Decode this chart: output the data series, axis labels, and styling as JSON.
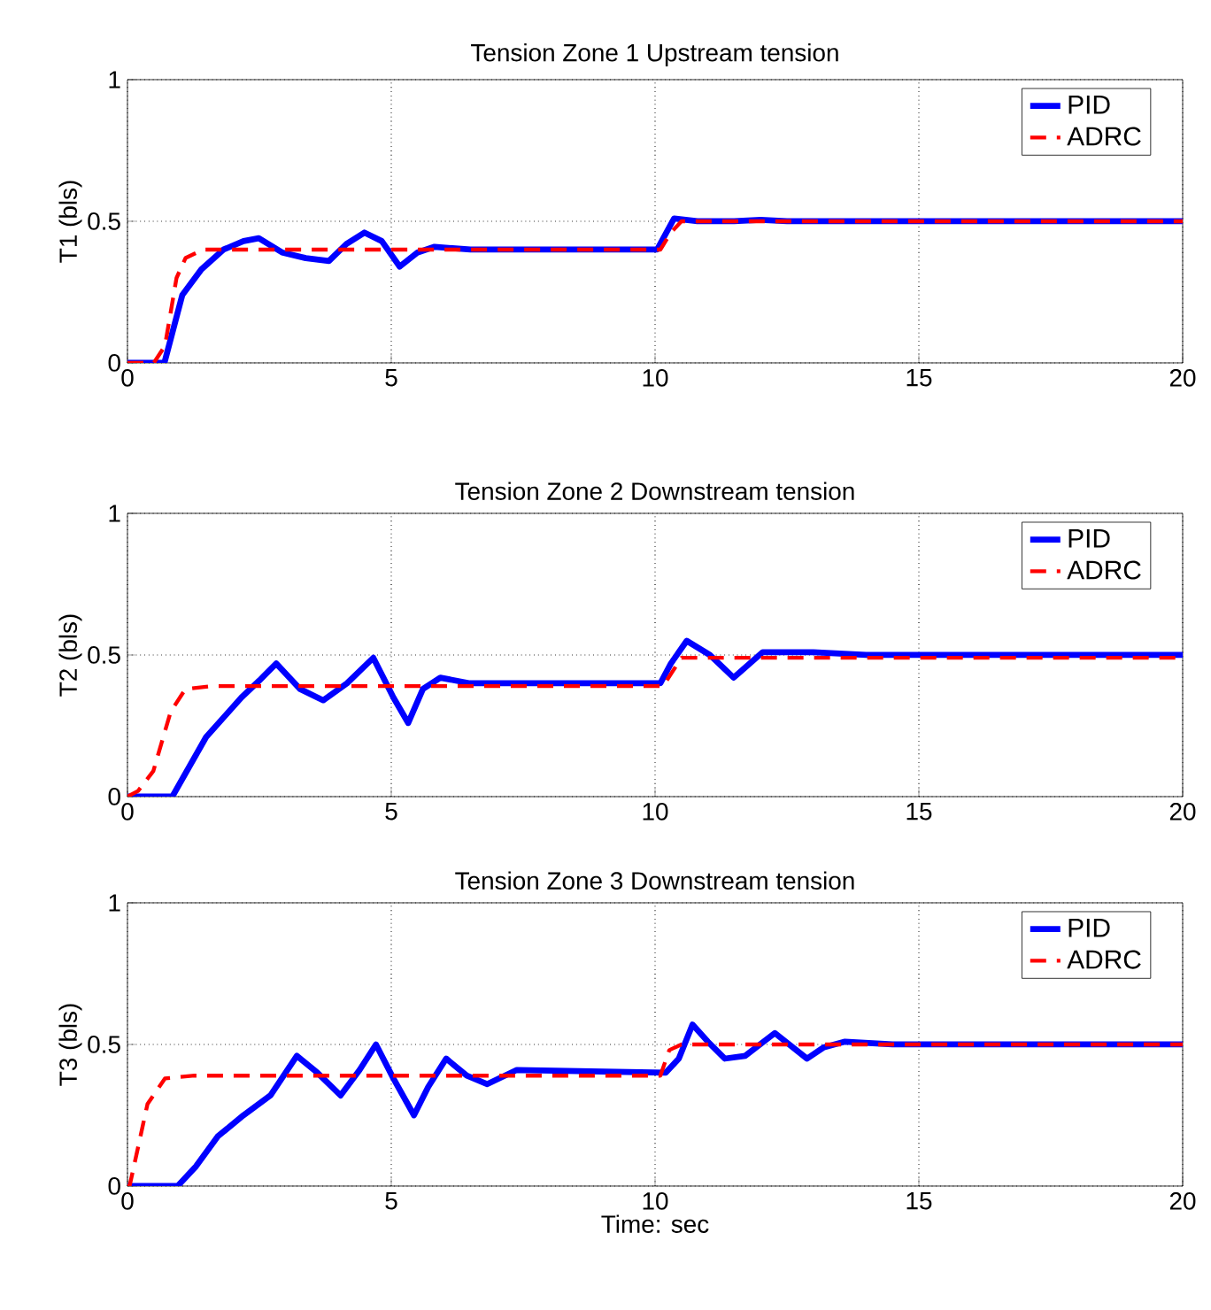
{
  "chart_data": [
    {
      "type": "line",
      "title": "Tension Zone 1 Upstream tension",
      "ylabel": "T1 (bls)",
      "xlim": [
        0,
        20
      ],
      "ylim": [
        0,
        1
      ],
      "xticks": [
        0,
        5,
        10,
        15,
        20
      ],
      "yticks": [
        0,
        0.5,
        1
      ],
      "grid": true,
      "legend": "top right",
      "series": [
        {
          "name": "PID",
          "color": "#0000ff",
          "line_style": "solid",
          "x": [
            0,
            0.7,
            1.04,
            1.4,
            1.82,
            2.2,
            2.49,
            2.93,
            3.38,
            3.82,
            4.15,
            4.49,
            4.82,
            5.16,
            5.5,
            5.82,
            6.5,
            10.04,
            10.36,
            10.8,
            11.5,
            12.0,
            12.5,
            13.5,
            20
          ],
          "values": [
            0,
            0,
            0.24,
            0.33,
            0.4,
            0.43,
            0.44,
            0.39,
            0.37,
            0.36,
            0.42,
            0.46,
            0.43,
            0.34,
            0.39,
            0.41,
            0.4,
            0.4,
            0.51,
            0.5,
            0.5,
            0.505,
            0.5,
            0.5,
            0.5
          ]
        },
        {
          "name": "ADRC",
          "color": "#ff0000",
          "line_style": "dashed",
          "x": [
            0,
            0.5,
            0.71,
            0.93,
            1.1,
            1.43,
            10.1,
            10.3,
            10.5,
            20
          ],
          "values": [
            0,
            0,
            0.06,
            0.3,
            0.37,
            0.4,
            0.4,
            0.46,
            0.5,
            0.5
          ]
        }
      ]
    },
    {
      "type": "line",
      "title": "Tension Zone 2 Downstream tension",
      "ylabel": "T2 (bls)",
      "xlim": [
        0,
        20
      ],
      "ylim": [
        0,
        1
      ],
      "xticks": [
        0,
        5,
        10,
        15,
        20
      ],
      "yticks": [
        0,
        0.5,
        1
      ],
      "grid": true,
      "legend": "top right",
      "series": [
        {
          "name": "PID",
          "color": "#0000ff",
          "line_style": "solid",
          "x": [
            0,
            0.85,
            1.49,
            2.16,
            2.5,
            2.82,
            3.27,
            3.71,
            4.16,
            4.66,
            5.04,
            5.32,
            5.6,
            5.93,
            6.49,
            10.1,
            10.3,
            10.6,
            11.04,
            11.49,
            12.04,
            13,
            14,
            20
          ],
          "values": [
            0,
            0,
            0.21,
            0.35,
            0.41,
            0.47,
            0.38,
            0.34,
            0.4,
            0.49,
            0.35,
            0.26,
            0.38,
            0.42,
            0.4,
            0.4,
            0.47,
            0.55,
            0.5,
            0.42,
            0.51,
            0.51,
            0.5,
            0.5
          ]
        },
        {
          "name": "ADRC",
          "color": "#ff0000",
          "line_style": "dashed",
          "x": [
            0,
            0.2,
            0.49,
            0.82,
            1.1,
            1.6,
            10.15,
            10.5,
            20
          ],
          "values": [
            0,
            0.02,
            0.09,
            0.3,
            0.38,
            0.39,
            0.39,
            0.49,
            0.49
          ]
        }
      ]
    },
    {
      "type": "line",
      "title": "Tension Zone 3 Downstream tension",
      "ylabel": "T3 (bls)",
      "xlabel": "Time:  sec",
      "xlim": [
        0,
        20
      ],
      "ylim": [
        0,
        1
      ],
      "xticks": [
        0,
        5,
        10,
        15,
        20
      ],
      "yticks": [
        0,
        0.5,
        1
      ],
      "grid": true,
      "legend": "top right",
      "series": [
        {
          "name": "PID",
          "color": "#0000ff",
          "line_style": "solid",
          "x": [
            0,
            0.95,
            1.3,
            1.71,
            2.2,
            2.71,
            3.21,
            3.6,
            4.04,
            4.4,
            4.71,
            5.04,
            5.43,
            5.7,
            6.04,
            6.43,
            6.82,
            7.38,
            10.2,
            10.45,
            10.71,
            11.0,
            11.32,
            11.71,
            12.27,
            12.88,
            13.2,
            13.6,
            14.5,
            20
          ],
          "values": [
            0,
            0,
            0.07,
            0.175,
            0.25,
            0.32,
            0.46,
            0.4,
            0.32,
            0.41,
            0.5,
            0.38,
            0.25,
            0.35,
            0.45,
            0.39,
            0.36,
            0.41,
            0.4,
            0.45,
            0.57,
            0.51,
            0.45,
            0.46,
            0.54,
            0.45,
            0.49,
            0.51,
            0.5,
            0.5
          ]
        },
        {
          "name": "ADRC",
          "color": "#ff0000",
          "line_style": "dashed",
          "x": [
            0,
            0.04,
            0.38,
            0.71,
            1.27,
            10.1,
            10.27,
            10.5,
            20
          ],
          "values": [
            0,
            0,
            0.29,
            0.38,
            0.39,
            0.39,
            0.48,
            0.5,
            0.5
          ]
        }
      ]
    }
  ]
}
